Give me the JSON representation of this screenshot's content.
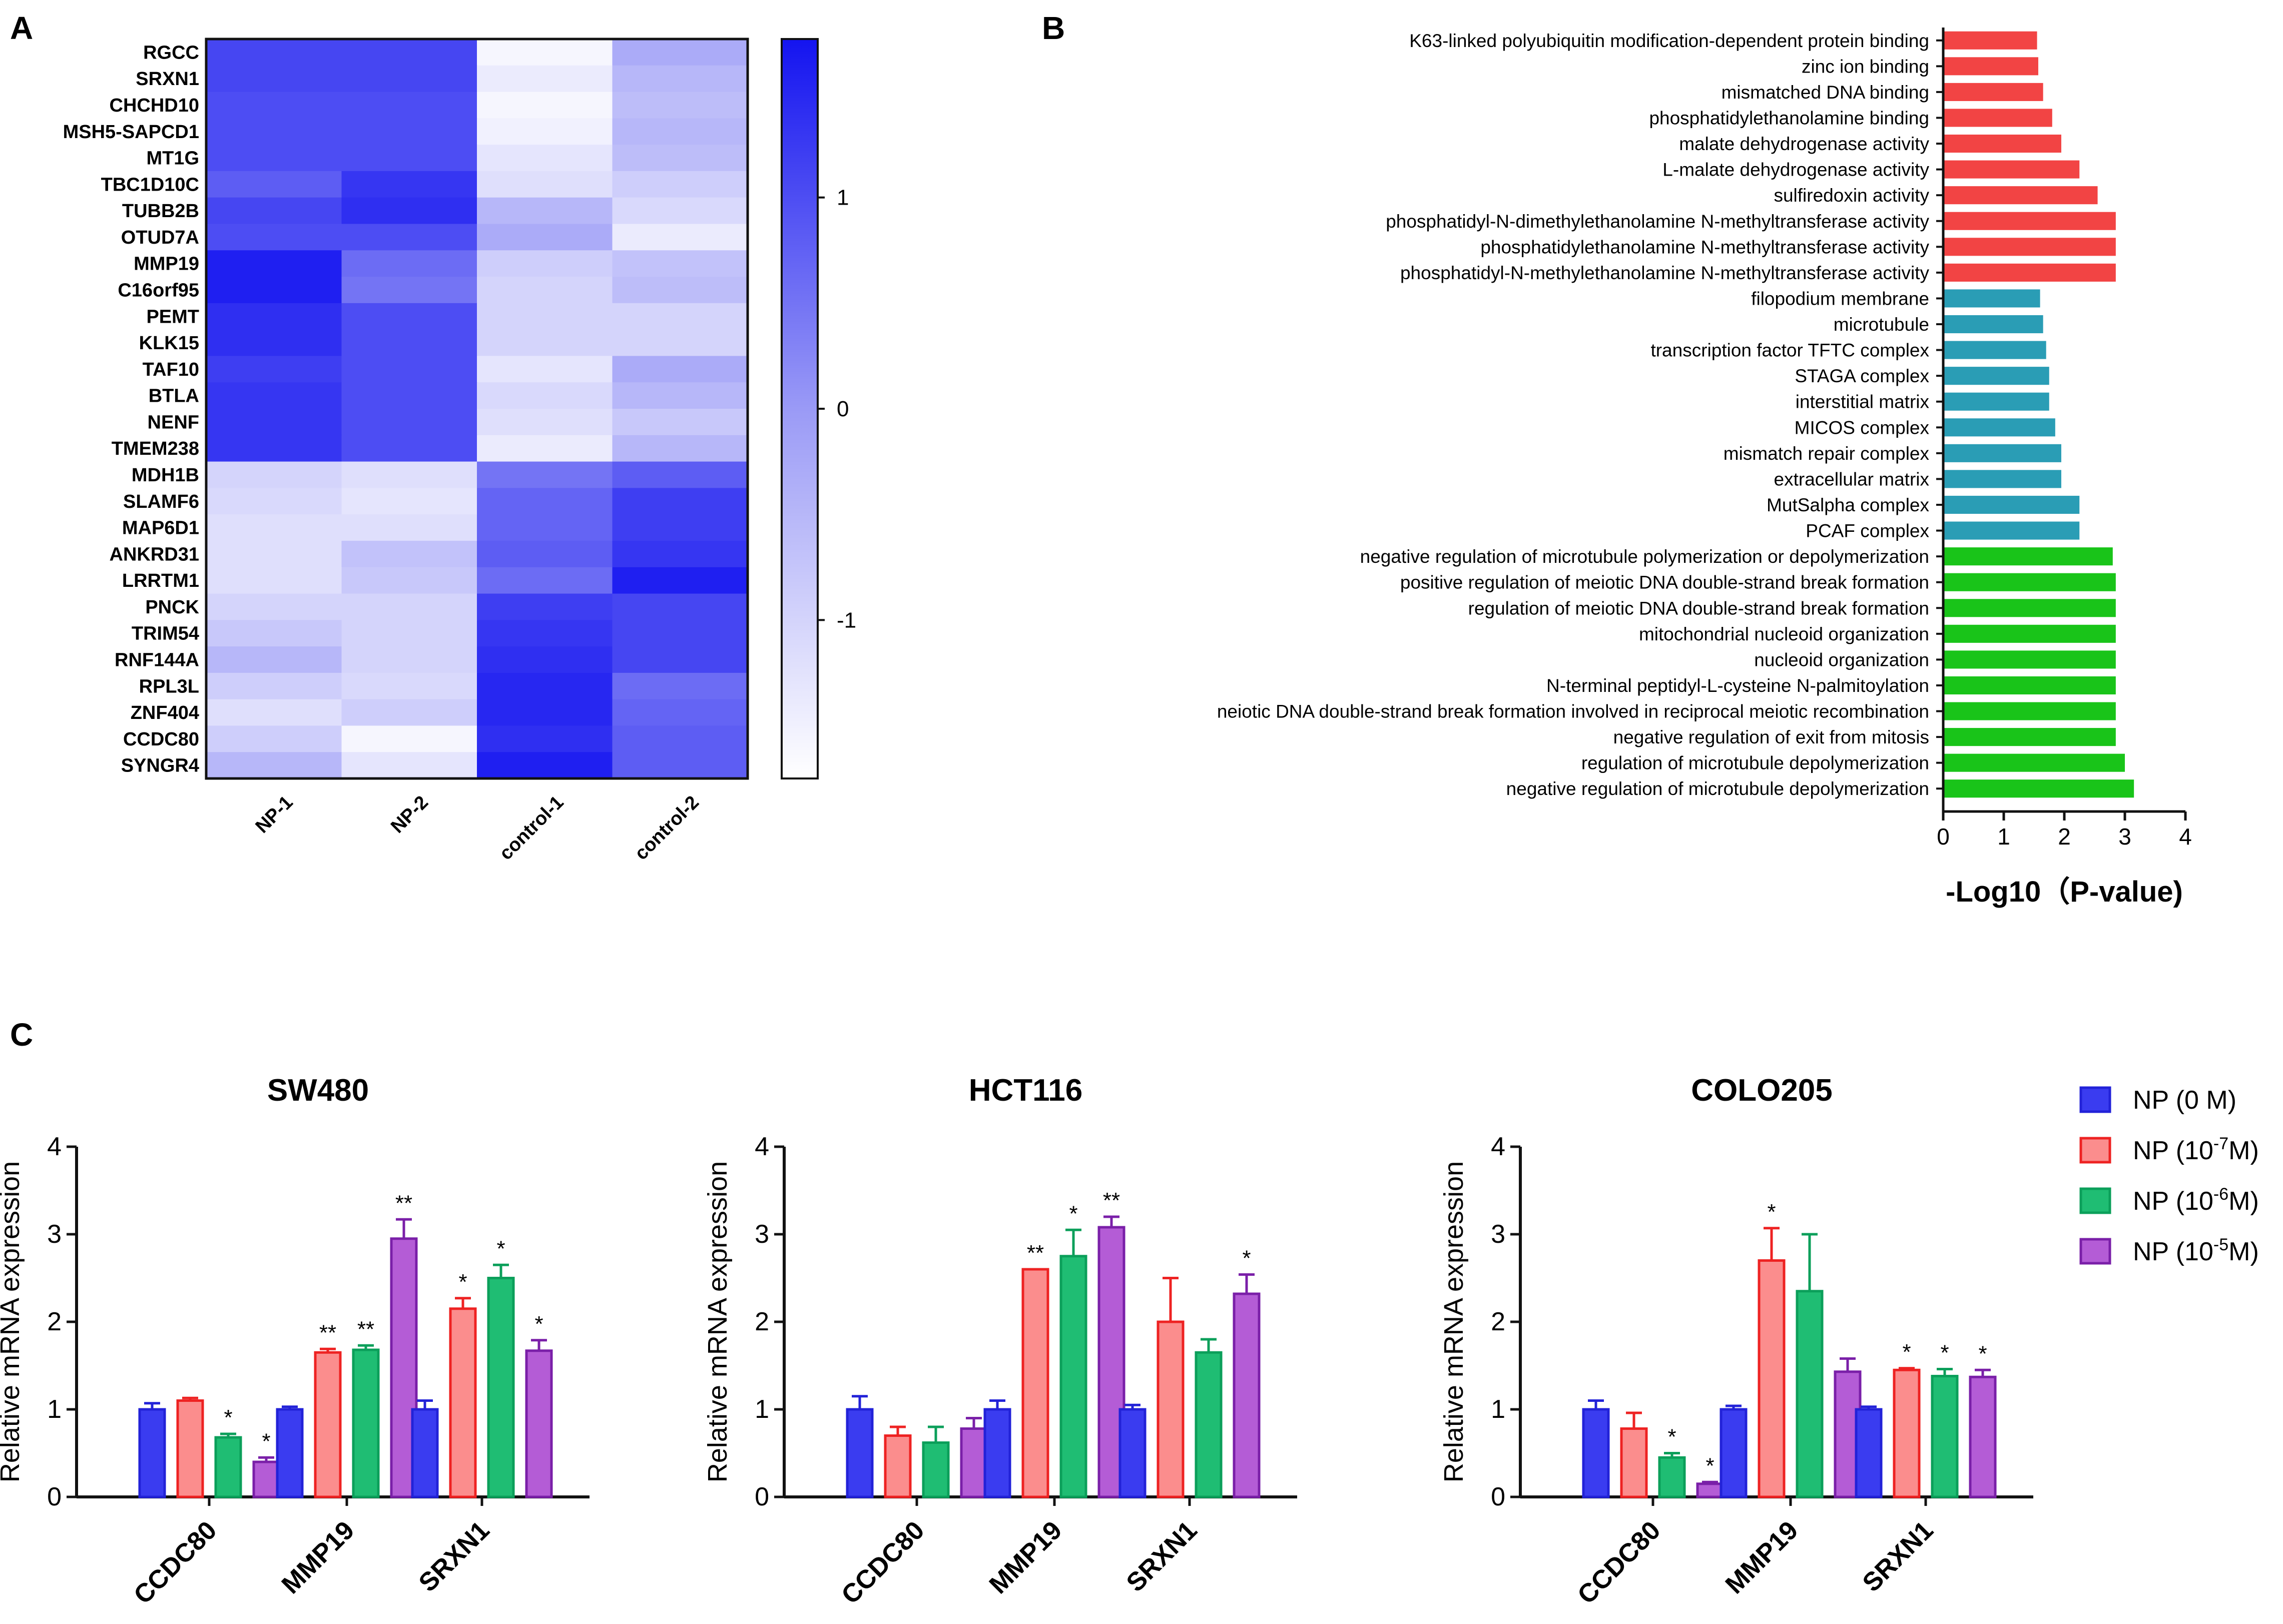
{
  "panels": {
    "a": "A",
    "b": "B",
    "c": "C"
  },
  "colors": {
    "heat_high": "#1414f0",
    "heat_mid": "#9a9af6",
    "heat_low": "#ffffff",
    "go_mf": "#f24444",
    "go_cc": "#2a9db5",
    "go_bp": "#19c419",
    "bar_fill": [
      "#3a3cf0",
      "#fb8d8d",
      "#1fbd73",
      "#b45cd6"
    ],
    "bar_edge": [
      "#2222d8",
      "#ee2222",
      "#0b9f5a",
      "#7a1fa8"
    ]
  },
  "chart_data": [
    {
      "type": "heatmap",
      "panel": "A",
      "columns": [
        "NP-1",
        "NP-2",
        "control-1",
        "control-2"
      ],
      "rows": [
        "RGCC",
        "SRXN1",
        "CHCHD10",
        "MSH5-SAPCD1",
        "MT1G",
        "TBC1D10C",
        "TUBB2B",
        "OTUD7A",
        "MMP19",
        "C16orf95",
        "PEMT",
        "KLK15",
        "TAF10",
        "BTLA",
        "NENF",
        "TMEM238",
        "MDH1B",
        "SLAMF6",
        "MAP6D1",
        "ANKRD31",
        "LRRTM1",
        "PNCK",
        "TRIM54",
        "RNF144A",
        "RPL3L",
        "ZNF404",
        "CCDC80",
        "SYNGR4"
      ],
      "values": [
        [
          1.1,
          1.1,
          -1.6,
          -0.3
        ],
        [
          1.1,
          1.1,
          -1.4,
          -0.5
        ],
        [
          1.0,
          1.0,
          -1.6,
          -0.6
        ],
        [
          1.0,
          1.0,
          -1.5,
          -0.5
        ],
        [
          1.0,
          1.0,
          -1.3,
          -0.6
        ],
        [
          0.8,
          1.3,
          -1.2,
          -0.9
        ],
        [
          1.1,
          1.4,
          -0.5,
          -1.1
        ],
        [
          1.0,
          1.0,
          -0.3,
          -1.4
        ],
        [
          1.6,
          0.6,
          -0.9,
          -0.7
        ],
        [
          1.6,
          0.5,
          -1.0,
          -0.6
        ],
        [
          1.4,
          1.0,
          -1.0,
          -1.0
        ],
        [
          1.4,
          1.0,
          -1.0,
          -1.0
        ],
        [
          1.2,
          1.0,
          -1.3,
          -0.3
        ],
        [
          1.3,
          1.0,
          -1.1,
          -0.5
        ],
        [
          1.3,
          1.0,
          -1.2,
          -0.8
        ],
        [
          1.3,
          1.0,
          -1.4,
          -0.5
        ],
        [
          -1.0,
          -1.2,
          0.5,
          0.8
        ],
        [
          -1.1,
          -1.3,
          0.7,
          1.2
        ],
        [
          -1.2,
          -1.2,
          0.7,
          1.2
        ],
        [
          -1.2,
          -0.7,
          0.8,
          1.3
        ],
        [
          -1.2,
          -0.8,
          0.6,
          1.6
        ],
        [
          -1.0,
          -1.0,
          1.2,
          1.1
        ],
        [
          -0.8,
          -1.0,
          1.3,
          1.1
        ],
        [
          -0.5,
          -1.0,
          1.4,
          1.1
        ],
        [
          -0.9,
          -1.1,
          1.5,
          0.6
        ],
        [
          -1.2,
          -0.9,
          1.5,
          0.7
        ],
        [
          -0.9,
          -1.6,
          1.4,
          0.8
        ],
        [
          -0.5,
          -1.3,
          1.6,
          0.8
        ]
      ],
      "colorbar": {
        "ticks": [
          1,
          0,
          -1
        ],
        "tick_labels": [
          "1",
          "0",
          "-1"
        ],
        "range": [
          -1.75,
          1.75
        ]
      }
    },
    {
      "type": "bar",
      "orientation": "horizontal",
      "panel": "B",
      "xlabel": "-Log10（P-value)",
      "xlim": [
        0,
        4
      ],
      "xticks": [
        0,
        1,
        2,
        3,
        4
      ],
      "categories": [
        "K63-linked polyubiquitin modification-dependent protein binding",
        "zinc ion binding",
        "mismatched DNA binding",
        "phosphatidylethanolamine binding",
        "malate dehydrogenase activity",
        "L-malate dehydrogenase activity",
        "sulfiredoxin activity",
        "phosphatidyl-N-dimethylethanolamine N-methyltransferase activity",
        "phosphatidylethanolamine N-methyltransferase activity",
        "phosphatidyl-N-methylethanolamine N-methyltransferase activity",
        "filopodium membrane",
        "microtubule",
        "transcription factor TFTC complex",
        "STAGA complex",
        "interstitial matrix",
        "MICOS complex",
        "mismatch repair complex",
        "extracellular matrix",
        "MutSalpha complex",
        "PCAF complex",
        "negative regulation of microtubule polymerization or depolymerization",
        "positive regulation of meiotic DNA double-strand break formation",
        "regulation of meiotic DNA double-strand break formation",
        "mitochondrial nucleoid organization",
        "nucleoid organization",
        "N-terminal peptidyl-L-cysteine N-palmitoylation",
        "neiotic DNA double-strand break formation involved in reciprocal meiotic recombination",
        "negative regulation of exit from mitosis",
        "regulation of microtubule depolymerization",
        "negative regulation of microtubule depolymerization"
      ],
      "values": [
        1.55,
        1.57,
        1.65,
        1.8,
        1.95,
        2.25,
        2.55,
        2.85,
        2.85,
        2.85,
        1.6,
        1.65,
        1.7,
        1.75,
        1.75,
        1.85,
        1.95,
        1.95,
        2.25,
        2.25,
        2.8,
        2.85,
        2.85,
        2.85,
        2.85,
        2.85,
        2.85,
        2.85,
        3.0,
        3.15
      ],
      "groups": [
        "mf",
        "mf",
        "mf",
        "mf",
        "mf",
        "mf",
        "mf",
        "mf",
        "mf",
        "mf",
        "cc",
        "cc",
        "cc",
        "cc",
        "cc",
        "cc",
        "cc",
        "cc",
        "cc",
        "cc",
        "bp",
        "bp",
        "bp",
        "bp",
        "bp",
        "bp",
        "bp",
        "bp",
        "bp",
        "bp"
      ]
    },
    {
      "type": "bar",
      "panel": "C",
      "ylabel": "Relative mRNA expression",
      "ylim": [
        0,
        4
      ],
      "yticks": [
        0,
        1,
        2,
        3,
        4
      ],
      "categories": [
        "CCDC80",
        "MMP19",
        "SRXN1"
      ],
      "legend": [
        {
          "pre": "NP (0 M)",
          "sup": "",
          "post": ""
        },
        {
          "pre": "NP (10",
          "sup": "-7",
          "post": "M)"
        },
        {
          "pre": "NP (10",
          "sup": "-6",
          "post": "M)"
        },
        {
          "pre": "NP (10",
          "sup": "-5",
          "post": "M)"
        }
      ],
      "subplots": [
        {
          "title": "SW480",
          "series": [
            {
              "values": [
                1.0,
                1.0,
                1.0
              ],
              "errors": [
                0.07,
                0.03,
                0.1
              ],
              "sig": [
                "",
                "",
                ""
              ]
            },
            {
              "values": [
                1.1,
                1.65,
                2.15
              ],
              "errors": [
                0.03,
                0.04,
                0.12
              ],
              "sig": [
                "",
                "**",
                "*"
              ]
            },
            {
              "values": [
                0.68,
                1.68,
                2.5
              ],
              "errors": [
                0.04,
                0.05,
                0.15
              ],
              "sig": [
                "*",
                "**",
                "*"
              ]
            },
            {
              "values": [
                0.4,
                2.95,
                1.67
              ],
              "errors": [
                0.05,
                0.22,
                0.12
              ],
              "sig": [
                "*",
                "**",
                "*"
              ]
            }
          ]
        },
        {
          "title": "HCT116",
          "series": [
            {
              "values": [
                1.0,
                1.0,
                1.0
              ],
              "errors": [
                0.15,
                0.1,
                0.05
              ],
              "sig": [
                "",
                "",
                ""
              ]
            },
            {
              "values": [
                0.7,
                2.6,
                2.0
              ],
              "errors": [
                0.1,
                0.0,
                0.5
              ],
              "sig": [
                "",
                "**",
                ""
              ]
            },
            {
              "values": [
                0.62,
                2.75,
                1.65
              ],
              "errors": [
                0.18,
                0.3,
                0.15
              ],
              "sig": [
                "",
                "*",
                ""
              ]
            },
            {
              "values": [
                0.78,
                3.08,
                2.32
              ],
              "errors": [
                0.12,
                0.12,
                0.22
              ],
              "sig": [
                "",
                "**",
                "*"
              ]
            }
          ]
        },
        {
          "title": "COLO205",
          "series": [
            {
              "values": [
                1.0,
                1.0,
                1.0
              ],
              "errors": [
                0.1,
                0.04,
                0.03
              ],
              "sig": [
                "",
                "",
                ""
              ]
            },
            {
              "values": [
                0.78,
                2.7,
                1.45
              ],
              "errors": [
                0.18,
                0.37,
                0.02
              ],
              "sig": [
                "",
                "*",
                "*"
              ]
            },
            {
              "values": [
                0.45,
                2.35,
                1.38
              ],
              "errors": [
                0.05,
                0.65,
                0.08
              ],
              "sig": [
                "*",
                "",
                "*"
              ]
            },
            {
              "values": [
                0.15,
                1.43,
                1.37
              ],
              "errors": [
                0.02,
                0.15,
                0.08
              ],
              "sig": [
                "*",
                "",
                "*"
              ]
            }
          ]
        }
      ]
    }
  ]
}
